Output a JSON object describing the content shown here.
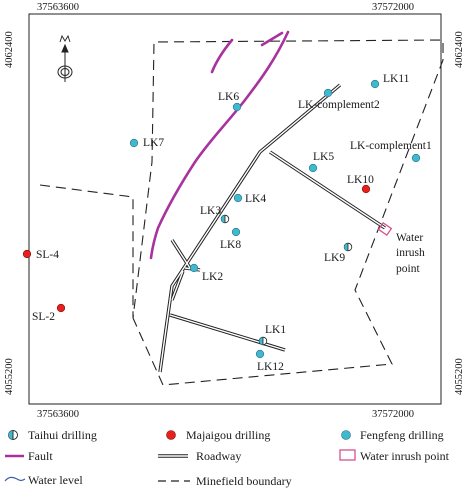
{
  "coordinates": {
    "top_left_x": "37563600",
    "top_right_x": "37572000",
    "bottom_left_x": "37563600",
    "bottom_right_x": "37572000",
    "left_top_y": "4062400",
    "left_bottom_y": "4055200",
    "right_top_y": "4062400",
    "right_bottom_y": "4055200"
  },
  "north_symbol": "north-arrow",
  "drillings": {
    "taihui": [
      "LK1",
      "LK3",
      "LK9"
    ],
    "majiagou": [
      "SL-4",
      "SL-2",
      "LK10"
    ],
    "fengfeng": [
      "LK11",
      "LK6",
      "LK-complement2",
      "LK7",
      "LK-complement1",
      "LK5",
      "LK4",
      "LK8",
      "LK2",
      "LK12"
    ]
  },
  "labels": {
    "lk11": "LK11",
    "lk6": "LK6",
    "lkc2": "LK-complement2",
    "lk7": "LK7",
    "lkc1": "LK-complement1",
    "lk5": "LK5",
    "lk10": "LK10",
    "lk4": "LK4",
    "lk3": "LK3",
    "lk8": "LK8",
    "lk9": "LK9",
    "lk2": "LK2",
    "sl4": "SL-4",
    "sl2": "SL-2",
    "lk1": "LK1",
    "lk12": "LK12",
    "water_inrush_line1": "Water",
    "water_inrush_line2": "inrush",
    "water_inrush_line3": "point"
  },
  "legend": {
    "taihui": "Taihui drilling",
    "majiagou": "Majaigou drilling",
    "fengfeng": "Fengfeng drilling",
    "fault": "Fault",
    "roadway": "Roadway",
    "water_inrush": "Water inrush point",
    "water_level": "Water level",
    "boundary": "Minefield boundary"
  },
  "colors": {
    "majiagou": "#e8201c",
    "fengfeng": "#3fb9cf",
    "fault": "#a8329e",
    "water_inrush": "#d9508a",
    "water_level": "#3a5fb0",
    "line": "#222222"
  }
}
